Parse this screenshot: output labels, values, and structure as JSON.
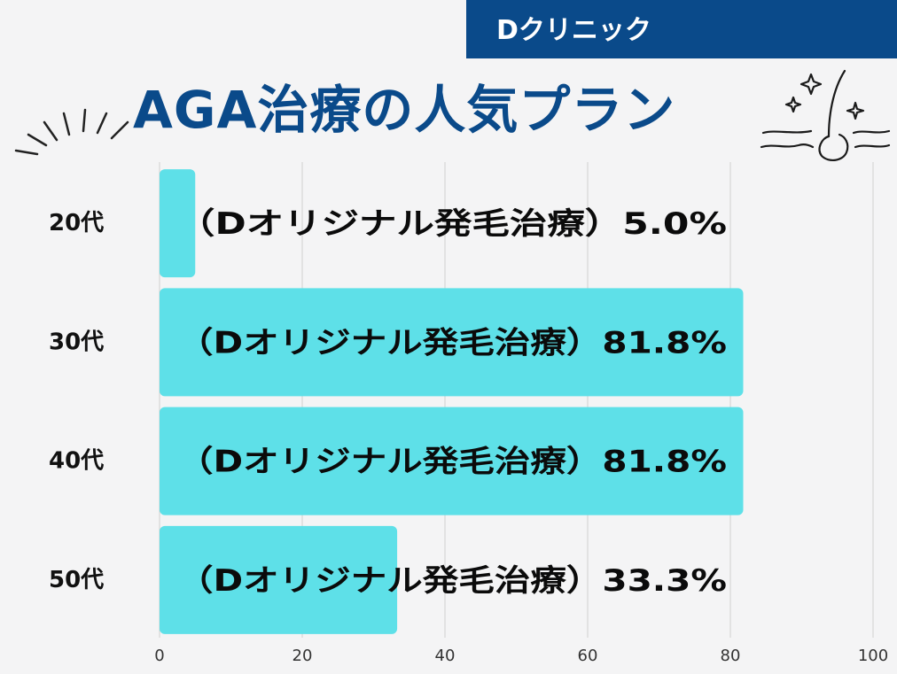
{
  "header": {
    "clinic_name": "Dクリニック",
    "title": "AGA治療の人気プラン"
  },
  "colors": {
    "brand": "#0a4a8a",
    "bar": "#5ee0e8",
    "background": "#f4f4f5"
  },
  "icons": [
    "burst-lines-icon",
    "hair-follicle-sparkle-icon"
  ],
  "chart_data": {
    "type": "bar",
    "orientation": "horizontal",
    "categories": [
      "20代",
      "30代",
      "40代",
      "50代"
    ],
    "values": [
      5.0,
      81.8,
      81.8,
      33.3
    ],
    "data_labels": [
      "（Dオリジナル発毛治療）5.0%",
      "（Dオリジナル発毛治療）81.8%",
      "（Dオリジナル発毛治療）81.8%",
      "（Dオリジナル発毛治療）33.3%"
    ],
    "x_ticks": [
      0,
      20,
      40,
      60,
      80,
      100
    ],
    "xlim": [
      0,
      100
    ],
    "grid": true,
    "xlabel": "",
    "ylabel": ""
  }
}
